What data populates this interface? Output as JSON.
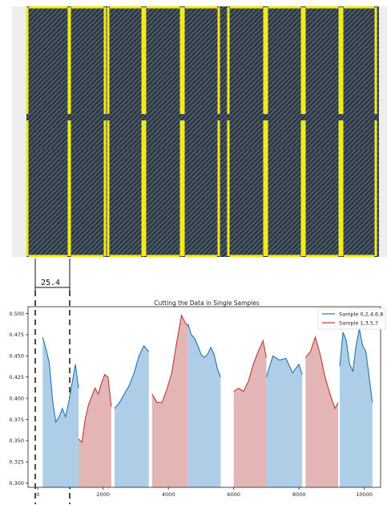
{
  "figure": {
    "dimension_label": "25.4"
  },
  "chart_data": {
    "type": "area",
    "title": "Cutting the Data in Single Samples",
    "xlabel": "",
    "ylabel": "",
    "xlim": [
      -300,
      10500
    ],
    "ylim": [
      0.295,
      0.508
    ],
    "x_ticks": [
      0,
      2000,
      4000,
      6000,
      8000,
      10000
    ],
    "y_ticks": [
      0.3,
      0.325,
      0.35,
      0.375,
      0.4,
      0.425,
      0.45,
      0.475,
      0.5
    ],
    "x_tick_labels": [
      "0",
      "2000",
      "4000",
      "6000",
      "8000",
      "10000"
    ],
    "y_tick_labels": [
      "0.300",
      "0.325",
      "0.350",
      "0.375",
      "0.400",
      "0.425",
      "0.450",
      "0.475",
      "0.500"
    ],
    "grid": false,
    "legend_position": "top-right",
    "colors": {
      "blue_line": "#1f77b4",
      "blue_fill": "#aecde7",
      "red_line": "#c0393b",
      "red_fill": "#e3b5b5"
    },
    "series": [
      {
        "name": "Sample 0,2,4,6,8",
        "color": "blue",
        "segments": [
          {
            "x": [
              150,
              250,
              350,
              450,
              550,
              650,
              750,
              850,
              950,
              1050,
              1150,
              1250
            ],
            "y": [
              0.472,
              0.458,
              0.442,
              0.398,
              0.372,
              0.378,
              0.388,
              0.378,
              0.396,
              0.418,
              0.44,
              0.412
            ]
          },
          {
            "x": [
              2350,
              2500,
              2650,
              2800,
              2950,
              3100,
              3250,
              3400
            ],
            "y": [
              0.388,
              0.395,
              0.405,
              0.415,
              0.43,
              0.45,
              0.462,
              0.455
            ]
          },
          {
            "x": [
              4600,
              4700,
              4800,
              4900,
              5000,
              5100,
              5200,
              5300,
              5400,
              5500,
              5600
            ],
            "y": [
              0.488,
              0.475,
              0.471,
              0.462,
              0.452,
              0.448,
              0.452,
              0.46,
              0.452,
              0.435,
              0.425
            ]
          },
          {
            "x": [
              7000,
              7200,
              7400,
              7600,
              7800,
              8000,
              8100
            ],
            "y": [
              0.425,
              0.45,
              0.445,
              0.447,
              0.43,
              0.44,
              0.428
            ]
          },
          {
            "x": [
              9250,
              9350,
              9450,
              9550,
              9650,
              9750,
              9850,
              9950,
              10050,
              10150,
              10250
            ],
            "y": [
              0.438,
              0.478,
              0.468,
              0.44,
              0.432,
              0.462,
              0.482,
              0.462,
              0.455,
              0.425,
              0.395
            ]
          }
        ]
      },
      {
        "name": "Sample 1,3,5,7",
        "color": "red",
        "segments": [
          {
            "x": [
              1250,
              1350,
              1450,
              1550,
              1650,
              1750,
              1850,
              1950,
              2050,
              2150,
              2250
            ],
            "y": [
              0.352,
              0.348,
              0.375,
              0.392,
              0.402,
              0.412,
              0.405,
              0.418,
              0.428,
              0.425,
              0.39
            ]
          },
          {
            "x": [
              3500,
              3650,
              3800,
              3950,
              4100,
              4250,
              4400,
              4500,
              4600
            ],
            "y": [
              0.405,
              0.395,
              0.395,
              0.41,
              0.43,
              0.465,
              0.498,
              0.49,
              0.485
            ]
          },
          {
            "x": [
              6000,
              6150,
              6300,
              6450,
              6600,
              6750,
              6900,
              7000
            ],
            "y": [
              0.408,
              0.412,
              0.408,
              0.42,
              0.44,
              0.455,
              0.468,
              0.448
            ]
          },
          {
            "x": [
              8200,
              8350,
              8500,
              8650,
              8800,
              8950,
              9100,
              9200
            ],
            "y": [
              0.448,
              0.455,
              0.472,
              0.452,
              0.425,
              0.405,
              0.388,
              0.395
            ]
          }
        ]
      }
    ]
  }
}
